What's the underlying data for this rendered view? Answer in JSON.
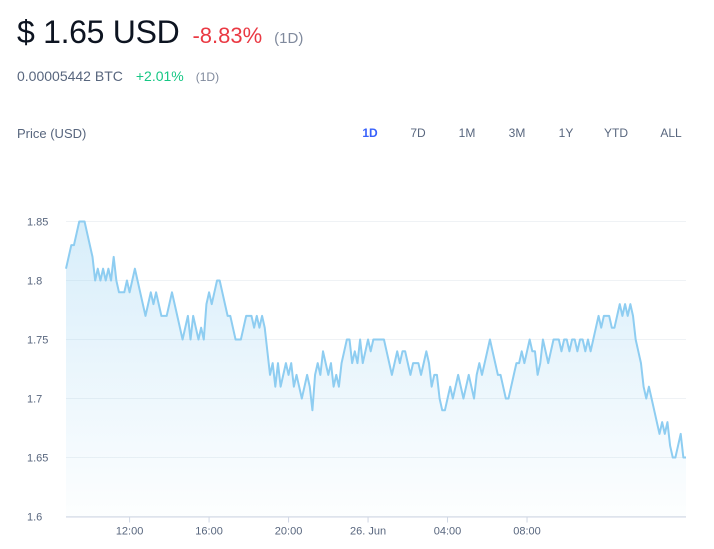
{
  "header": {
    "price": "$ 1.65 USD",
    "change": "-8.83%",
    "period": "(1D)"
  },
  "btc": {
    "price": "0.00005442 BTC",
    "change": "+2.01%",
    "period": "(1D)"
  },
  "colors": {
    "negative": "#ea3943",
    "positive": "#16c784",
    "active_tab": "#3861fb",
    "line": "#8ecdf1"
  },
  "controls": {
    "ranges": [
      "1D",
      "7D",
      "1M",
      "3M",
      "1Y",
      "YTD",
      "ALL"
    ],
    "active": "1D"
  },
  "chart_data": {
    "type": "area",
    "ylabel": "Price (USD)",
    "ylim": [
      1.6,
      1.85
    ],
    "yticks": [
      "1.6",
      "1.65",
      "1.7",
      "1.75",
      "1.8",
      "1.85"
    ],
    "xticks": [
      {
        "label": "12:00",
        "index": 24
      },
      {
        "label": "16:00",
        "index": 54
      },
      {
        "label": "20:00",
        "index": 84
      },
      {
        "label": "26. Jun",
        "index": 114
      },
      {
        "label": "04:00",
        "index": 144
      },
      {
        "label": "08:00",
        "index": 174
      }
    ],
    "grid": true,
    "series": [
      {
        "values": [
          1.81,
          1.82,
          1.83,
          1.83,
          1.84,
          1.85,
          1.85,
          1.85,
          1.84,
          1.83,
          1.82,
          1.8,
          1.81,
          1.8,
          1.81,
          1.8,
          1.81,
          1.8,
          1.82,
          1.8,
          1.79,
          1.79,
          1.79,
          1.8,
          1.79,
          1.8,
          1.81,
          1.8,
          1.79,
          1.78,
          1.77,
          1.78,
          1.79,
          1.78,
          1.79,
          1.78,
          1.77,
          1.77,
          1.77,
          1.78,
          1.79,
          1.78,
          1.77,
          1.76,
          1.75,
          1.76,
          1.77,
          1.75,
          1.77,
          1.76,
          1.75,
          1.76,
          1.75,
          1.78,
          1.79,
          1.78,
          1.79,
          1.8,
          1.8,
          1.79,
          1.78,
          1.77,
          1.77,
          1.76,
          1.75,
          1.75,
          1.75,
          1.76,
          1.77,
          1.77,
          1.77,
          1.76,
          1.77,
          1.76,
          1.77,
          1.76,
          1.74,
          1.72,
          1.73,
          1.71,
          1.73,
          1.71,
          1.72,
          1.73,
          1.72,
          1.73,
          1.71,
          1.72,
          1.71,
          1.7,
          1.71,
          1.72,
          1.71,
          1.69,
          1.72,
          1.73,
          1.72,
          1.74,
          1.73,
          1.72,
          1.73,
          1.71,
          1.72,
          1.71,
          1.73,
          1.74,
          1.75,
          1.75,
          1.73,
          1.74,
          1.73,
          1.75,
          1.73,
          1.74,
          1.75,
          1.74,
          1.75,
          1.75,
          1.75,
          1.75,
          1.75,
          1.74,
          1.73,
          1.72,
          1.73,
          1.74,
          1.73,
          1.74,
          1.74,
          1.73,
          1.72,
          1.73,
          1.73,
          1.73,
          1.72,
          1.73,
          1.74,
          1.73,
          1.71,
          1.72,
          1.72,
          1.7,
          1.69,
          1.69,
          1.7,
          1.71,
          1.7,
          1.71,
          1.72,
          1.71,
          1.7,
          1.71,
          1.72,
          1.71,
          1.7,
          1.72,
          1.73,
          1.72,
          1.73,
          1.74,
          1.75,
          1.74,
          1.73,
          1.72,
          1.72,
          1.71,
          1.7,
          1.7,
          1.71,
          1.72,
          1.73,
          1.73,
          1.74,
          1.73,
          1.74,
          1.75,
          1.74,
          1.74,
          1.72,
          1.73,
          1.75,
          1.74,
          1.73,
          1.74,
          1.75,
          1.75,
          1.75,
          1.74,
          1.75,
          1.75,
          1.74,
          1.75,
          1.75,
          1.74,
          1.75,
          1.75,
          1.74,
          1.75,
          1.74,
          1.75,
          1.76,
          1.77,
          1.76,
          1.77,
          1.77,
          1.77,
          1.76,
          1.76,
          1.77,
          1.78,
          1.77,
          1.78,
          1.77,
          1.78,
          1.77,
          1.75,
          1.74,
          1.73,
          1.71,
          1.7,
          1.71,
          1.7,
          1.69,
          1.68,
          1.67,
          1.68,
          1.67,
          1.68,
          1.66,
          1.65,
          1.65,
          1.66,
          1.67,
          1.65,
          1.65
        ]
      }
    ]
  }
}
